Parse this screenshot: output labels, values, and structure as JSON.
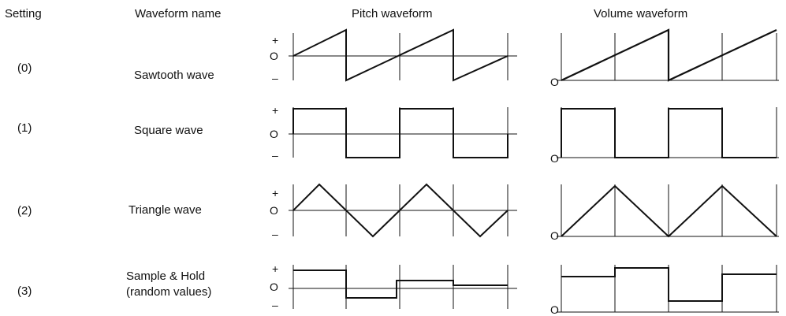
{
  "headers": {
    "setting": "Setting",
    "waveform_name": "Waveform name",
    "pitch": "Pitch waveform",
    "volume": "Volume waveform"
  },
  "axis_labels": {
    "plus": "+",
    "zero": "O",
    "minus": "–"
  },
  "rows": [
    {
      "setting": "(0)",
      "name_lines": [
        "Sawtooth wave"
      ]
    },
    {
      "setting": "(1)",
      "name_lines": [
        "Square wave"
      ]
    },
    {
      "setting": "(2)",
      "name_lines": [
        "Triangle wave"
      ]
    },
    {
      "setting": "(3)",
      "name_lines": [
        "Sample & Hold",
        "(random values)"
      ]
    }
  ],
  "stroke_color": "#111111"
}
